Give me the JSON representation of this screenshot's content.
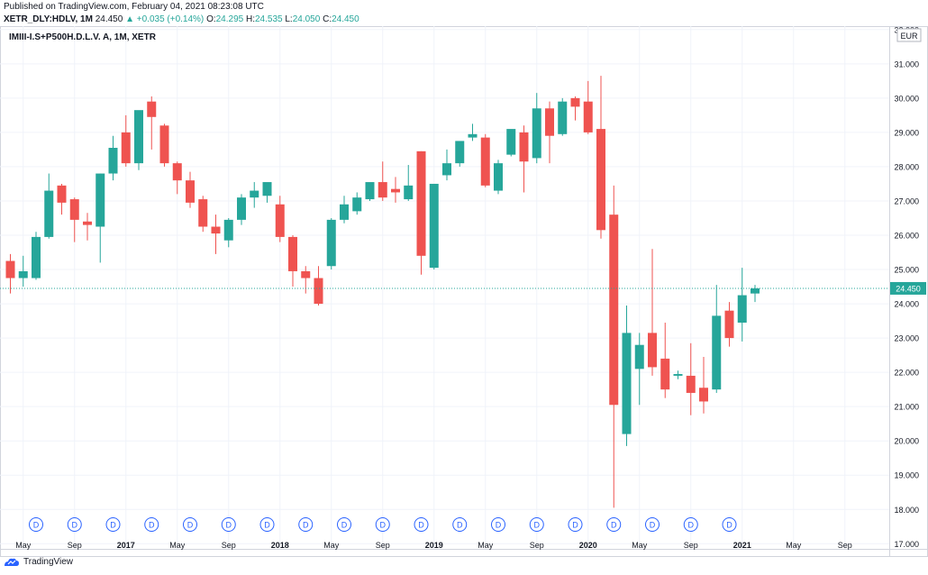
{
  "header": {
    "published": "Published on TradingView.com, February 04, 2021 08:23:08 UTC",
    "symbol": "XETR_DLY:HDLV,",
    "interval": "1M",
    "last": "24.450",
    "change": "▲ +0.035 (+0.14%)",
    "open_label": "O:",
    "open_value": "24.295",
    "high_label": "H:",
    "high_value": "24.535",
    "low_label": "L:",
    "low_value": "24.050",
    "close_label": "C:",
    "close_value": "24.450"
  },
  "chart_title": "IMIII-I.S+P500H.D.L.V. A, 1M, XETR",
  "currency": "EUR",
  "footer": {
    "brand": "TradingView"
  },
  "chart_data": {
    "type": "candlestick",
    "title": "IMIII-I.S+P500H.D.L.V. A, 1M, XETR",
    "ylim": [
      16.85,
      32.1
    ],
    "y_ticks": [
      "17.000",
      "18.000",
      "19.000",
      "20.000",
      "21.000",
      "22.000",
      "23.000",
      "24.000",
      "25.000",
      "26.000",
      "27.000",
      "28.000",
      "29.000",
      "30.000",
      "31.000",
      "32.000"
    ],
    "x_ticks": [
      {
        "i": 1,
        "label": "May"
      },
      {
        "i": 5,
        "label": "Sep"
      },
      {
        "i": 9,
        "label": "2017"
      },
      {
        "i": 13,
        "label": "May"
      },
      {
        "i": 17,
        "label": "Sep"
      },
      {
        "i": 21,
        "label": "2018"
      },
      {
        "i": 25,
        "label": "May"
      },
      {
        "i": 29,
        "label": "Sep"
      },
      {
        "i": 33,
        "label": "2019"
      },
      {
        "i": 37,
        "label": "May"
      },
      {
        "i": 41,
        "label": "Sep"
      },
      {
        "i": 45,
        "label": "2020"
      },
      {
        "i": 49,
        "label": "May"
      },
      {
        "i": 53,
        "label": "Sep"
      },
      {
        "i": 57,
        "label": "2021"
      },
      {
        "i": 61,
        "label": "May"
      },
      {
        "i": 65,
        "label": "Sep"
      }
    ],
    "dividend_marker": "D",
    "dividend_indices": [
      2,
      5,
      8,
      11,
      14,
      17,
      20,
      23,
      26,
      29,
      32,
      35,
      38,
      41,
      44,
      47,
      50,
      53,
      56
    ],
    "last_price": 24.45,
    "last_price_label": "24.450",
    "up_color": "#26a69a",
    "down_color": "#ef5350",
    "candles": [
      {
        "o": 25.25,
        "h": 25.45,
        "l": 24.3,
        "c": 24.75
      },
      {
        "o": 24.75,
        "h": 25.4,
        "l": 24.5,
        "c": 24.95
      },
      {
        "o": 24.75,
        "h": 26.1,
        "l": 24.7,
        "c": 25.95
      },
      {
        "o": 25.95,
        "h": 27.8,
        "l": 25.9,
        "c": 27.3
      },
      {
        "o": 27.45,
        "h": 27.5,
        "l": 26.6,
        "c": 26.95
      },
      {
        "o": 27.05,
        "h": 27.1,
        "l": 25.8,
        "c": 26.45
      },
      {
        "o": 26.4,
        "h": 26.65,
        "l": 25.85,
        "c": 26.3
      },
      {
        "o": 26.25,
        "h": 27.8,
        "l": 25.2,
        "c": 27.8
      },
      {
        "o": 27.8,
        "h": 28.9,
        "l": 27.6,
        "c": 28.55
      },
      {
        "o": 29.0,
        "h": 29.5,
        "l": 28.0,
        "c": 28.1
      },
      {
        "o": 28.1,
        "h": 29.6,
        "l": 27.9,
        "c": 29.65
      },
      {
        "o": 29.9,
        "h": 30.05,
        "l": 28.5,
        "c": 29.45
      },
      {
        "o": 29.2,
        "h": 29.25,
        "l": 28.0,
        "c": 28.1
      },
      {
        "o": 28.1,
        "h": 28.15,
        "l": 27.2,
        "c": 27.6
      },
      {
        "o": 27.6,
        "h": 27.85,
        "l": 26.8,
        "c": 26.95
      },
      {
        "o": 27.05,
        "h": 27.15,
        "l": 26.1,
        "c": 26.25
      },
      {
        "o": 26.25,
        "h": 26.6,
        "l": 25.45,
        "c": 26.05
      },
      {
        "o": 25.85,
        "h": 26.5,
        "l": 25.65,
        "c": 26.45
      },
      {
        "o": 26.45,
        "h": 27.2,
        "l": 26.3,
        "c": 27.1
      },
      {
        "o": 27.1,
        "h": 27.55,
        "l": 26.8,
        "c": 27.3
      },
      {
        "o": 27.15,
        "h": 27.5,
        "l": 26.95,
        "c": 27.55
      },
      {
        "o": 26.9,
        "h": 27.15,
        "l": 25.8,
        "c": 25.95
      },
      {
        "o": 25.95,
        "h": 26.0,
        "l": 24.5,
        "c": 24.95
      },
      {
        "o": 24.95,
        "h": 25.1,
        "l": 24.3,
        "c": 24.75
      },
      {
        "o": 24.75,
        "h": 25.1,
        "l": 23.95,
        "c": 24.0
      },
      {
        "o": 25.1,
        "h": 26.5,
        "l": 25.0,
        "c": 26.45
      },
      {
        "o": 26.45,
        "h": 27.15,
        "l": 26.35,
        "c": 26.9
      },
      {
        "o": 26.7,
        "h": 27.25,
        "l": 26.6,
        "c": 27.1
      },
      {
        "o": 27.05,
        "h": 27.5,
        "l": 27.0,
        "c": 27.55
      },
      {
        "o": 27.55,
        "h": 28.15,
        "l": 27.0,
        "c": 27.1
      },
      {
        "o": 27.35,
        "h": 27.7,
        "l": 26.95,
        "c": 27.25
      },
      {
        "o": 27.05,
        "h": 28.05,
        "l": 27.0,
        "c": 27.45
      },
      {
        "o": 28.45,
        "h": 28.45,
        "l": 24.85,
        "c": 25.4
      },
      {
        "o": 25.05,
        "h": 27.45,
        "l": 25.0,
        "c": 27.5
      },
      {
        "o": 27.75,
        "h": 28.5,
        "l": 27.6,
        "c": 28.1
      },
      {
        "o": 28.1,
        "h": 28.7,
        "l": 28.0,
        "c": 28.75
      },
      {
        "o": 28.85,
        "h": 29.25,
        "l": 28.75,
        "c": 28.95
      },
      {
        "o": 28.85,
        "h": 28.95,
        "l": 27.4,
        "c": 27.45
      },
      {
        "o": 27.3,
        "h": 28.2,
        "l": 27.2,
        "c": 28.1
      },
      {
        "o": 28.35,
        "h": 29.05,
        "l": 28.3,
        "c": 29.1
      },
      {
        "o": 29.0,
        "h": 29.2,
        "l": 27.25,
        "c": 28.15
      },
      {
        "o": 28.25,
        "h": 30.15,
        "l": 28.1,
        "c": 29.7
      },
      {
        "o": 29.7,
        "h": 29.9,
        "l": 28.1,
        "c": 28.9
      },
      {
        "o": 28.95,
        "h": 30.0,
        "l": 28.9,
        "c": 29.9
      },
      {
        "o": 30.0,
        "h": 30.05,
        "l": 29.35,
        "c": 29.75
      },
      {
        "o": 29.9,
        "h": 30.5,
        "l": 28.95,
        "c": 29.0
      },
      {
        "o": 29.1,
        "h": 30.65,
        "l": 25.9,
        "c": 26.15
      },
      {
        "o": 26.6,
        "h": 27.45,
        "l": 18.05,
        "c": 21.05
      },
      {
        "o": 20.2,
        "h": 23.95,
        "l": 19.85,
        "c": 23.15
      },
      {
        "o": 22.1,
        "h": 23.15,
        "l": 21.05,
        "c": 22.8
      },
      {
        "o": 23.15,
        "h": 25.6,
        "l": 21.9,
        "c": 22.15
      },
      {
        "o": 22.4,
        "h": 23.45,
        "l": 21.25,
        "c": 21.5
      },
      {
        "o": 21.9,
        "h": 22.05,
        "l": 21.8,
        "c": 21.95
      },
      {
        "o": 21.9,
        "h": 22.85,
        "l": 20.75,
        "c": 21.4
      },
      {
        "o": 21.55,
        "h": 22.45,
        "l": 20.8,
        "c": 21.15
      },
      {
        "o": 21.5,
        "h": 24.55,
        "l": 21.4,
        "c": 23.65
      },
      {
        "o": 23.8,
        "h": 24.05,
        "l": 22.75,
        "c": 23.0
      },
      {
        "o": 23.45,
        "h": 25.05,
        "l": 22.9,
        "c": 24.25
      },
      {
        "o": 24.3,
        "h": 24.55,
        "l": 24.05,
        "c": 24.45
      }
    ]
  }
}
